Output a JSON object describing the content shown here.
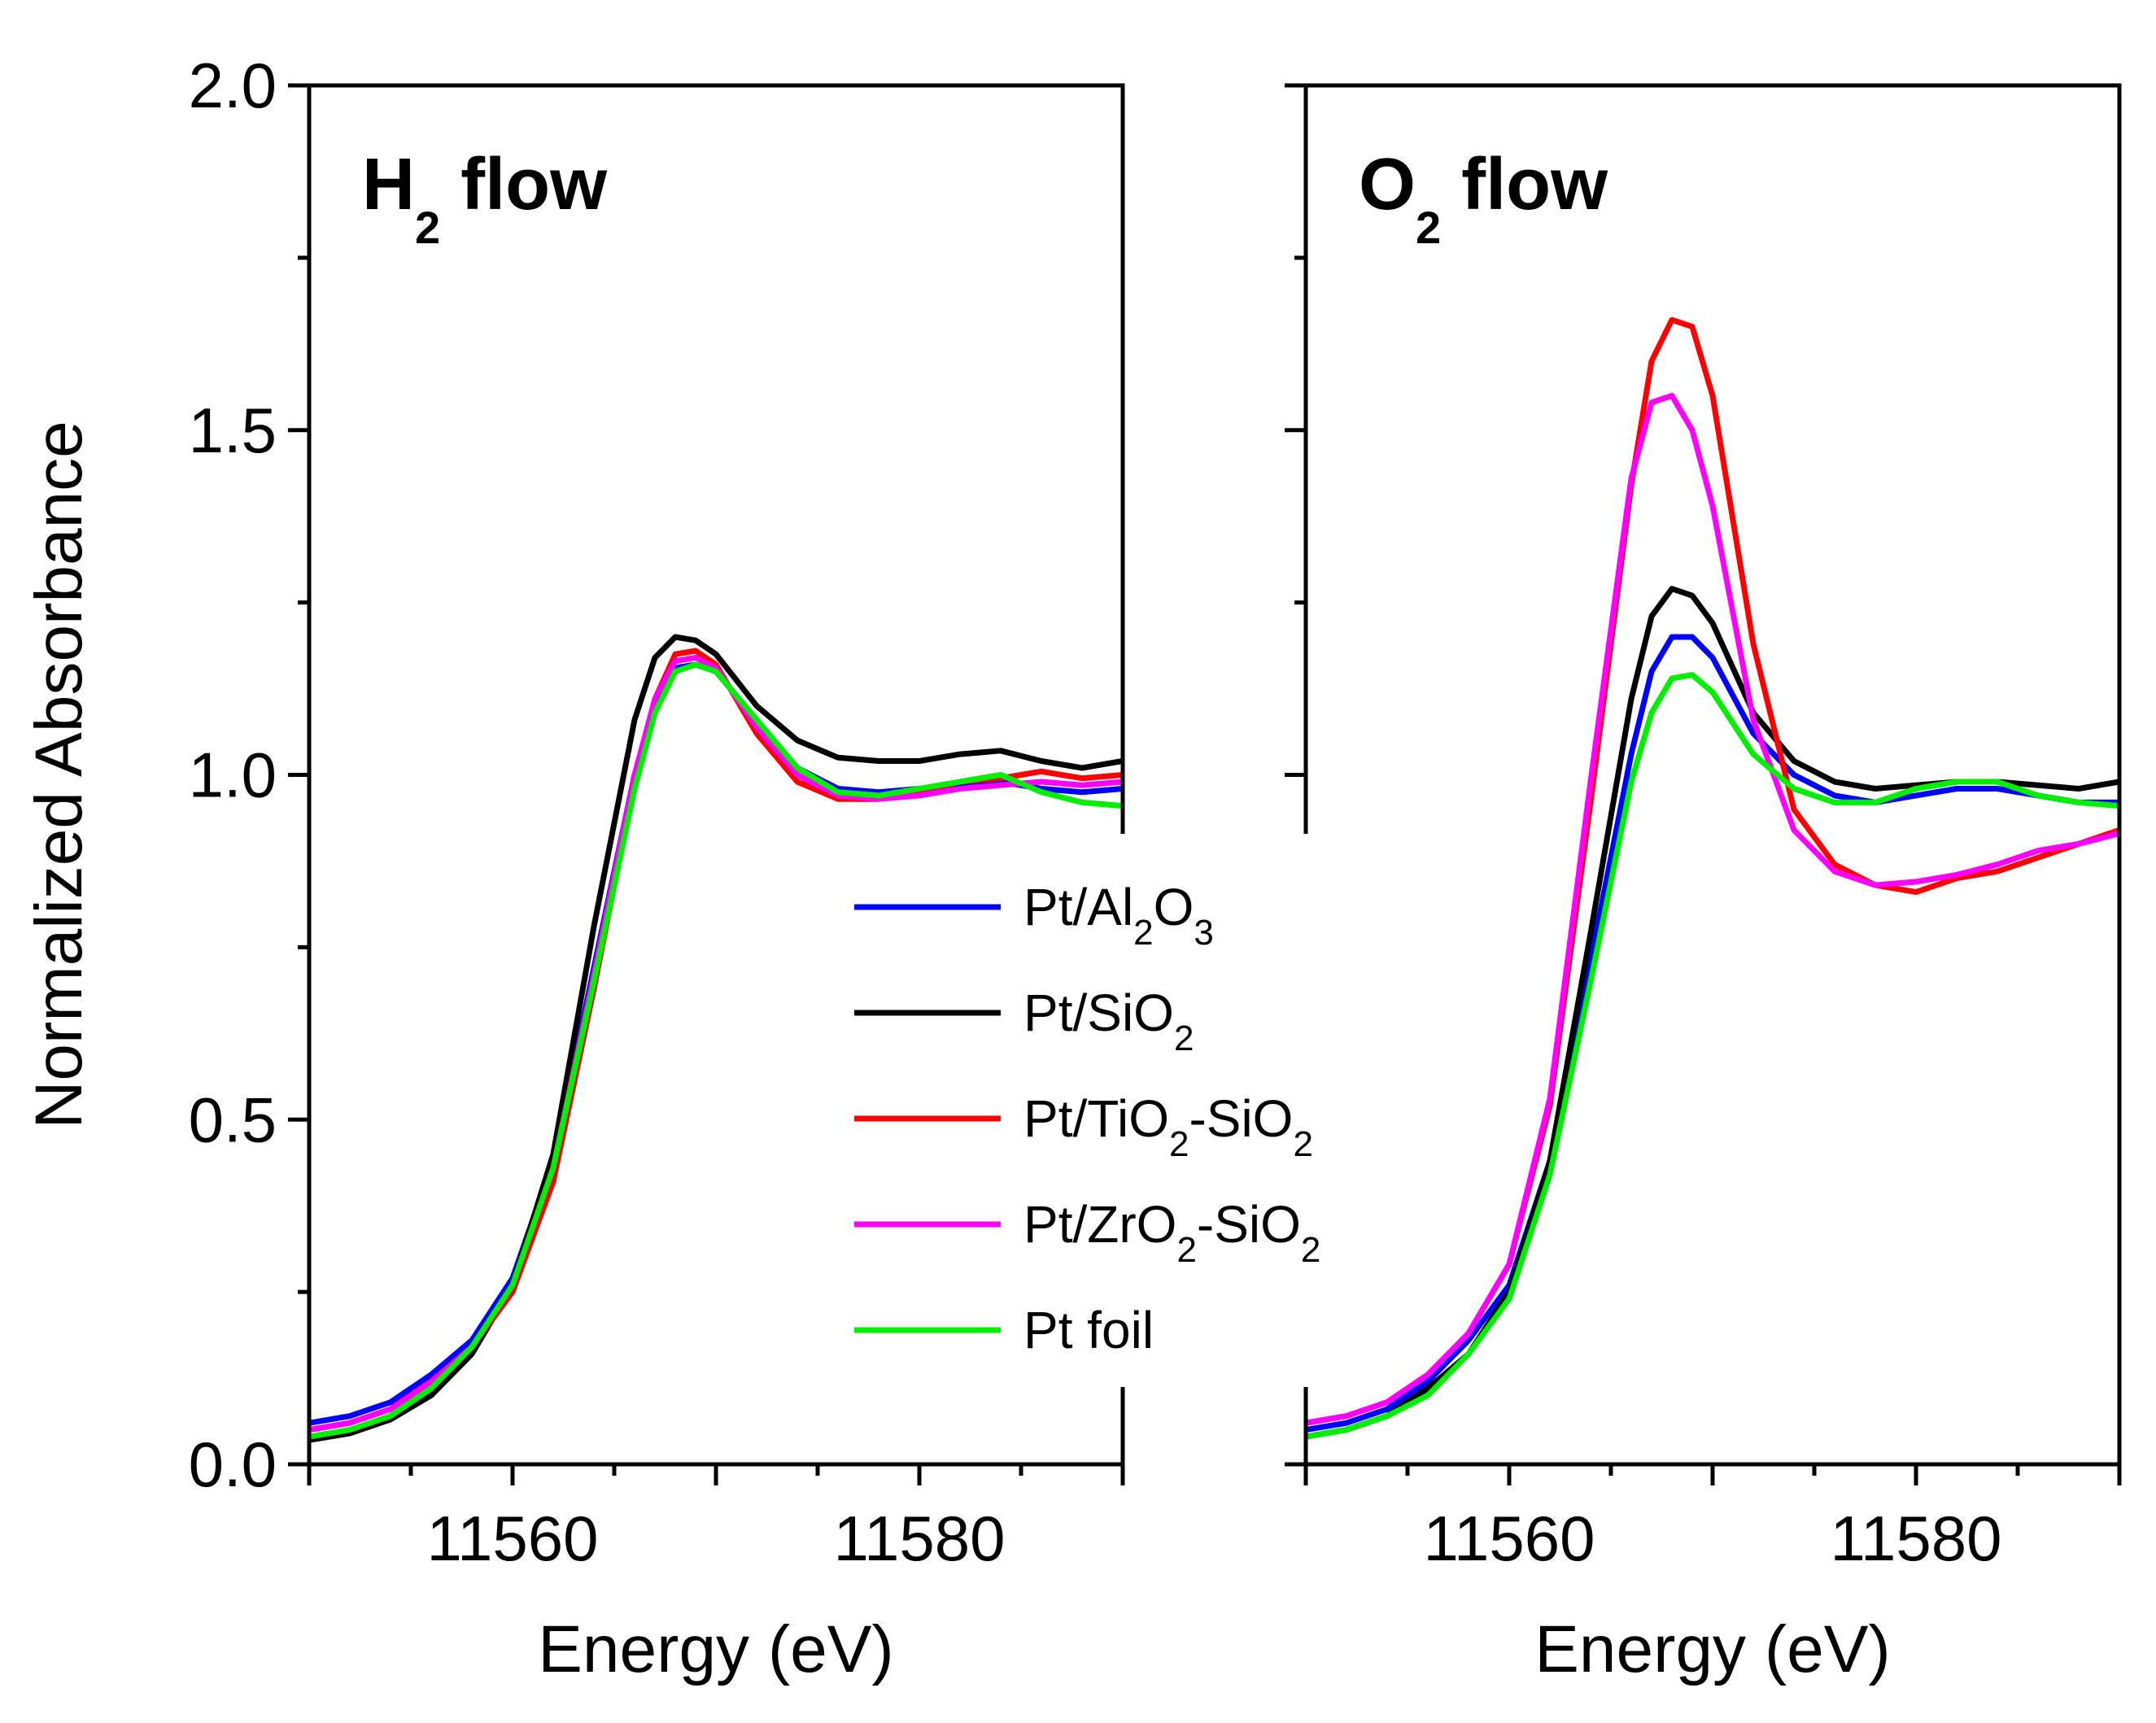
{
  "colors": {
    "Pt/Al2O3": "#0000ff",
    "Pt/SiO2": "#000000",
    "Pt/TiO2-SiO2": "#ff0000",
    "Pt/ZrO2-SiO2": "#ff00ff",
    "Pt foil": "#00ee00"
  },
  "chart_data": [
    {
      "type": "line",
      "title": "H2 flow",
      "title_main": "H",
      "title_sub": "2",
      "title_rest": " flow",
      "xlabel": "Energy (eV)",
      "ylabel": "Normalized Absorbance",
      "xlim": [
        11550,
        11590
      ],
      "ylim": [
        0.0,
        2.0
      ],
      "xticks": [
        11560,
        11580
      ],
      "xtick_labels": [
        "11560",
        "11580"
      ],
      "yticks": [
        0.0,
        0.5,
        1.0,
        1.5,
        2.0
      ],
      "ytick_labels": [
        "0.0",
        "0.5",
        "1.0",
        "1.5",
        "2.0"
      ],
      "series": [
        {
          "name": "Pt/Al2O3",
          "x": [
            11550,
            11552,
            11554,
            11556,
            11558,
            11560,
            11562,
            11564,
            11566,
            11567,
            11568,
            11569,
            11570,
            11572,
            11574,
            11576,
            11578,
            11580,
            11582,
            11584,
            11586,
            11588,
            11590
          ],
          "y": [
            0.06,
            0.07,
            0.09,
            0.13,
            0.18,
            0.27,
            0.44,
            0.72,
            1.0,
            1.1,
            1.155,
            1.16,
            1.15,
            1.08,
            1.01,
            0.98,
            0.975,
            0.98,
            0.985,
            0.99,
            0.98,
            0.975,
            0.98
          ]
        },
        {
          "name": "Pt/SiO2",
          "x": [
            11550,
            11552,
            11554,
            11556,
            11558,
            11560,
            11562,
            11564,
            11566,
            11567,
            11568,
            11569,
            11570,
            11572,
            11574,
            11576,
            11578,
            11580,
            11582,
            11584,
            11586,
            11588,
            11590
          ],
          "y": [
            0.035,
            0.045,
            0.065,
            0.1,
            0.16,
            0.26,
            0.45,
            0.78,
            1.08,
            1.17,
            1.2,
            1.195,
            1.175,
            1.1,
            1.05,
            1.025,
            1.02,
            1.02,
            1.03,
            1.035,
            1.02,
            1.01,
            1.02
          ]
        },
        {
          "name": "Pt/TiO2-SiO2",
          "x": [
            11550,
            11552,
            11554,
            11556,
            11558,
            11560,
            11562,
            11564,
            11566,
            11567,
            11568,
            11569,
            11570,
            11572,
            11574,
            11576,
            11578,
            11580,
            11582,
            11584,
            11586,
            11588,
            11590
          ],
          "y": [
            0.05,
            0.06,
            0.08,
            0.12,
            0.17,
            0.25,
            0.41,
            0.69,
            0.99,
            1.11,
            1.175,
            1.18,
            1.16,
            1.06,
            0.99,
            0.965,
            0.965,
            0.975,
            0.99,
            0.995,
            1.005,
            0.995,
            1.0
          ]
        },
        {
          "name": "Pt/ZrO2-SiO2",
          "x": [
            11550,
            11552,
            11554,
            11556,
            11558,
            11560,
            11562,
            11564,
            11566,
            11567,
            11568,
            11569,
            11570,
            11572,
            11574,
            11576,
            11578,
            11580,
            11582,
            11584,
            11586,
            11588,
            11590
          ],
          "y": [
            0.05,
            0.06,
            0.08,
            0.12,
            0.17,
            0.26,
            0.43,
            0.71,
            1.0,
            1.11,
            1.165,
            1.17,
            1.155,
            1.07,
            1.0,
            0.97,
            0.965,
            0.97,
            0.98,
            0.985,
            0.99,
            0.985,
            0.99
          ]
        },
        {
          "name": "Pt foil",
          "x": [
            11550,
            11552,
            11554,
            11556,
            11558,
            11560,
            11562,
            11564,
            11566,
            11567,
            11568,
            11569,
            11570,
            11572,
            11574,
            11576,
            11578,
            11580,
            11582,
            11584,
            11586,
            11588,
            11590
          ],
          "y": [
            0.04,
            0.05,
            0.07,
            0.11,
            0.17,
            0.26,
            0.43,
            0.7,
            0.98,
            1.09,
            1.15,
            1.16,
            1.15,
            1.08,
            1.01,
            0.975,
            0.97,
            0.98,
            0.99,
            1.0,
            0.975,
            0.96,
            0.955
          ]
        }
      ]
    },
    {
      "type": "line",
      "title": "O2 flow",
      "title_main": "O",
      "title_sub": "2",
      "title_rest": " flow",
      "xlabel": "Energy (eV)",
      "xlim": [
        11550,
        11590
      ],
      "ylim": [
        0.0,
        2.0
      ],
      "xticks": [
        11560,
        11580
      ],
      "xtick_labels": [
        "11560",
        "11580"
      ],
      "yticks": [
        0.0,
        0.5,
        1.0,
        1.5,
        2.0
      ],
      "series": [
        {
          "name": "Pt/Al2O3",
          "x": [
            11550,
            11552,
            11554,
            11556,
            11558,
            11560,
            11562,
            11564,
            11566,
            11567,
            11568,
            11569,
            11570,
            11572,
            11574,
            11576,
            11578,
            11580,
            11582,
            11584,
            11586,
            11588,
            11590
          ],
          "y": [
            0.05,
            0.06,
            0.08,
            0.12,
            0.18,
            0.26,
            0.44,
            0.73,
            1.03,
            1.15,
            1.2,
            1.2,
            1.17,
            1.06,
            1.0,
            0.97,
            0.96,
            0.97,
            0.98,
            0.98,
            0.97,
            0.96,
            0.96
          ]
        },
        {
          "name": "Pt/SiO2",
          "x": [
            11550,
            11552,
            11554,
            11556,
            11558,
            11560,
            11562,
            11564,
            11566,
            11567,
            11568,
            11569,
            11570,
            11572,
            11574,
            11576,
            11578,
            11580,
            11582,
            11584,
            11586,
            11588,
            11590
          ],
          "y": [
            0.04,
            0.05,
            0.07,
            0.11,
            0.16,
            0.25,
            0.44,
            0.77,
            1.11,
            1.23,
            1.27,
            1.26,
            1.22,
            1.09,
            1.02,
            0.99,
            0.98,
            0.985,
            0.99,
            0.99,
            0.985,
            0.98,
            0.99
          ]
        },
        {
          "name": "Pt/TiO2-SiO2",
          "x": [
            11550,
            11552,
            11554,
            11556,
            11558,
            11560,
            11562,
            11564,
            11566,
            11567,
            11568,
            11569,
            11570,
            11572,
            11574,
            11576,
            11578,
            11580,
            11582,
            11584,
            11586,
            11588,
            11590
          ],
          "y": [
            0.06,
            0.07,
            0.09,
            0.13,
            0.19,
            0.29,
            0.52,
            0.96,
            1.42,
            1.6,
            1.66,
            1.65,
            1.55,
            1.19,
            0.95,
            0.87,
            0.84,
            0.83,
            0.85,
            0.86,
            0.88,
            0.9,
            0.92
          ]
        },
        {
          "name": "Pt/ZrO2-SiO2",
          "x": [
            11550,
            11552,
            11554,
            11556,
            11558,
            11560,
            11562,
            11564,
            11566,
            11567,
            11568,
            11569,
            11570,
            11572,
            11574,
            11576,
            11578,
            11580,
            11582,
            11584,
            11586,
            11588,
            11590
          ],
          "y": [
            0.06,
            0.07,
            0.09,
            0.13,
            0.19,
            0.29,
            0.53,
            0.99,
            1.43,
            1.54,
            1.55,
            1.5,
            1.39,
            1.08,
            0.92,
            0.86,
            0.84,
            0.845,
            0.855,
            0.87,
            0.89,
            0.9,
            0.915
          ]
        },
        {
          "name": "Pt foil",
          "x": [
            11550,
            11552,
            11554,
            11556,
            11558,
            11560,
            11562,
            11564,
            11566,
            11567,
            11568,
            11569,
            11570,
            11572,
            11574,
            11576,
            11578,
            11580,
            11582,
            11584,
            11586,
            11588,
            11590
          ],
          "y": [
            0.04,
            0.05,
            0.07,
            0.1,
            0.16,
            0.24,
            0.42,
            0.7,
            0.99,
            1.09,
            1.14,
            1.145,
            1.12,
            1.03,
            0.98,
            0.96,
            0.96,
            0.98,
            0.99,
            0.99,
            0.97,
            0.96,
            0.955
          ]
        }
      ]
    }
  ],
  "legend": {
    "items": [
      {
        "name": "Pt/Al2O3",
        "parts": [
          [
            "Pt/Al",
            false
          ],
          [
            "2",
            true
          ],
          [
            "O",
            false
          ],
          [
            "3",
            true
          ]
        ]
      },
      {
        "name": "Pt/SiO2",
        "parts": [
          [
            "Pt/SiO",
            false
          ],
          [
            "2",
            true
          ]
        ]
      },
      {
        "name": "Pt/TiO2-SiO2",
        "parts": [
          [
            "Pt/TiO",
            false
          ],
          [
            "2",
            true
          ],
          [
            "-SiO",
            false
          ],
          [
            "2",
            true
          ]
        ]
      },
      {
        "name": "Pt/ZrO2-SiO2",
        "parts": [
          [
            "Pt/ZrO",
            false
          ],
          [
            "2",
            true
          ],
          [
            "-SiO",
            false
          ],
          [
            "2",
            true
          ]
        ]
      },
      {
        "name": "Pt foil",
        "parts": [
          [
            "Pt foil",
            false
          ]
        ]
      }
    ]
  }
}
